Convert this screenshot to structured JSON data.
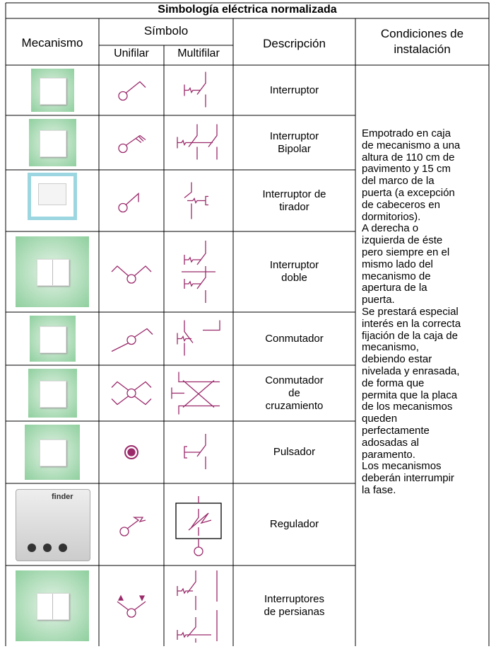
{
  "header": {
    "title": "Simbología eléctrica normalizada",
    "mechanism": "Mecanismo",
    "symbol": "Símbolo",
    "single_line": "Unifilar",
    "multi_line": "Multifilar",
    "description": "Descripción",
    "conditions": [
      "Condiciones de",
      "instalación"
    ]
  },
  "rows": [
    {
      "description": [
        "Interruptor"
      ]
    },
    {
      "description": [
        "Interruptor",
        "Bipolar"
      ]
    },
    {
      "description": [
        "Interruptor de",
        "tirador"
      ]
    },
    {
      "description": [
        "Interruptor",
        "doble"
      ]
    },
    {
      "description": [
        "Conmutador"
      ]
    },
    {
      "description": [
        "Conmutador",
        "de",
        "cruzamiento"
      ]
    },
    {
      "description": [
        "Pulsador"
      ]
    },
    {
      "description": [
        "Regulador"
      ],
      "brand": "finder"
    },
    {
      "description": [
        "Interruptores",
        "de persianas"
      ]
    }
  ],
  "conditions": [
    "Empotrado en caja",
    "de mecanismo a una",
    "altura de 110 cm de",
    "pavimento y 15 cm",
    "del marco de la",
    "puerta (a excepción",
    "de cabeceros en",
    "dormitorios).",
    "A derecha o",
    "izquierda de éste",
    "pero siempre en el",
    "mismo lado del",
    "mecanismo de",
    "apertura de la",
    "puerta.",
    "Se prestará especial",
    "interés en la correcta",
    "fijación de la caja de",
    "mecanismo,",
    "debiendo estar",
    "nivelada y enrasada,",
    "de forma que",
    "permita que la placa",
    "de los mecanismos",
    "queden",
    "perfectamente",
    "adosadas al",
    "paramento.",
    "Los mecanismos",
    "deberán interrumpir",
    "la fase."
  ]
}
